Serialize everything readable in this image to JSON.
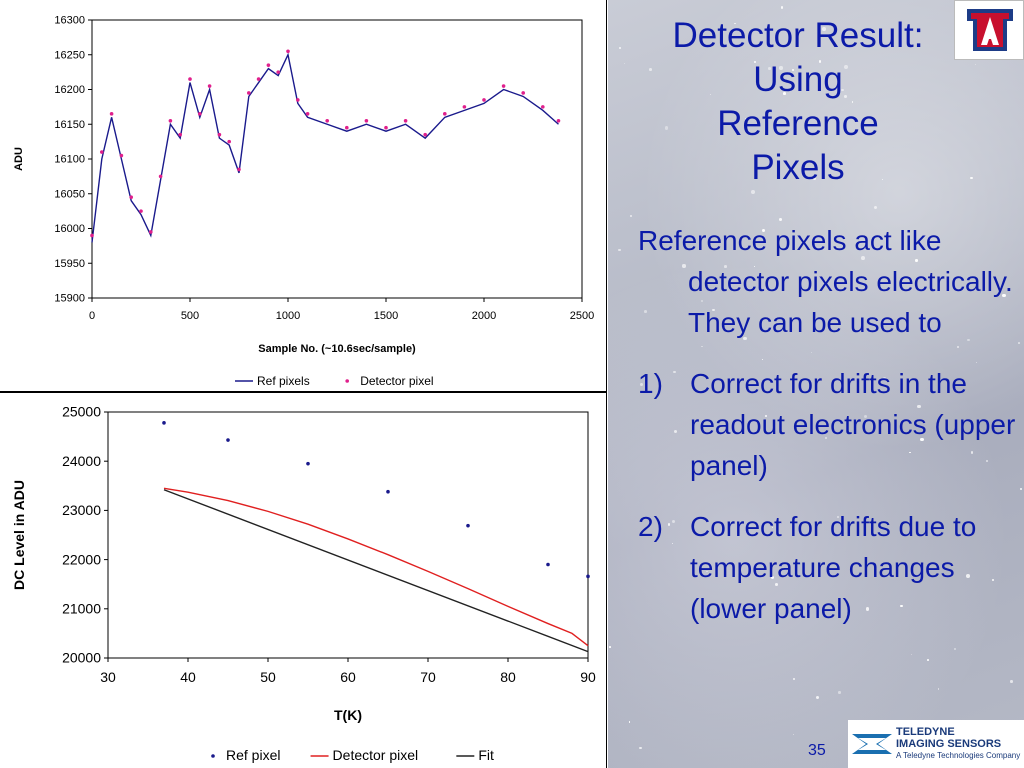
{
  "slide": {
    "title": "Detector Result: Using Reference Pixels",
    "intro": "Reference pixels act like detector pixels electrically. They can be used to",
    "items": [
      {
        "num": "1)",
        "text": "Correct for drifts in the readout electronics (upper panel)"
      },
      {
        "num": "2)",
        "text": "Correct for drifts due to temperature changes (lower panel)"
      }
    ],
    "page_number": "35",
    "logo_letter": "A",
    "teledyne": {
      "line1": "TELEDYNE",
      "line2": "IMAGING SENSORS",
      "line3": "A Teledyne Technologies Company"
    }
  },
  "chart_data": [
    {
      "type": "line",
      "xlabel": "Sample No. (~10.6sec/sample)",
      "ylabel": "ADU",
      "xlim": [
        0,
        2500
      ],
      "ylim": [
        15900,
        16300
      ],
      "xticks": [
        0,
        500,
        1000,
        1500,
        2000,
        2500
      ],
      "yticks": [
        15900,
        15950,
        16000,
        16050,
        16100,
        16150,
        16200,
        16250,
        16300
      ],
      "legend": "bottom",
      "grid": false,
      "series": [
        {
          "name": "Ref pixels",
          "style": "line",
          "color": "#1a1a8c",
          "x": [
            0,
            50,
            100,
            150,
            200,
            250,
            300,
            350,
            400,
            450,
            500,
            550,
            600,
            650,
            700,
            750,
            800,
            850,
            900,
            950,
            1000,
            1050,
            1100,
            1200,
            1300,
            1400,
            1500,
            1600,
            1700,
            1800,
            1900,
            2000,
            2100,
            2200,
            2300,
            2380
          ],
          "y": [
            15980,
            16100,
            16160,
            16100,
            16040,
            16020,
            15990,
            16070,
            16150,
            16130,
            16210,
            16160,
            16200,
            16130,
            16120,
            16080,
            16190,
            16210,
            16230,
            16220,
            16250,
            16180,
            16160,
            16150,
            16140,
            16150,
            16140,
            16150,
            16130,
            16160,
            16170,
            16180,
            16200,
            16190,
            16170,
            16150
          ]
        },
        {
          "name": "Detector pixel",
          "style": "dots",
          "color": "#e0208c",
          "x": [
            0,
            50,
            100,
            150,
            200,
            250,
            300,
            350,
            400,
            450,
            500,
            550,
            600,
            650,
            700,
            750,
            800,
            850,
            900,
            950,
            1000,
            1050,
            1100,
            1200,
            1300,
            1400,
            1500,
            1600,
            1700,
            1800,
            1900,
            2000,
            2100,
            2200,
            2300,
            2380
          ],
          "y": [
            15990,
            16110,
            16165,
            16105,
            16045,
            16025,
            15995,
            16075,
            16155,
            16135,
            16215,
            16165,
            16205,
            16135,
            16125,
            16085,
            16195,
            16215,
            16235,
            16225,
            16255,
            16185,
            16165,
            16155,
            16145,
            16155,
            16145,
            16155,
            16135,
            16165,
            16175,
            16185,
            16205,
            16195,
            16175,
            16155
          ]
        }
      ]
    },
    {
      "type": "line",
      "xlabel": "T(K)",
      "ylabel": "DC Level in ADU",
      "xlim": [
        30,
        90
      ],
      "ylim": [
        20000,
        25000
      ],
      "xticks": [
        30,
        40,
        50,
        60,
        70,
        80,
        90
      ],
      "yticks": [
        20000,
        21000,
        22000,
        23000,
        24000,
        25000
      ],
      "legend": "bottom",
      "grid": false,
      "series": [
        {
          "name": "Ref pixel",
          "style": "dots",
          "color": "#1a1a8c",
          "x": [
            37,
            45,
            55,
            65,
            75,
            85,
            90
          ],
          "y": [
            24780,
            24430,
            23950,
            23380,
            22690,
            21900,
            21660
          ]
        },
        {
          "name": "Detector pixel",
          "style": "line",
          "color": "#e02020",
          "x": [
            37,
            40,
            45,
            50,
            55,
            60,
            65,
            70,
            75,
            80,
            85,
            88,
            90
          ],
          "y": [
            23450,
            23370,
            23200,
            22980,
            22720,
            22420,
            22100,
            21760,
            21410,
            21050,
            20700,
            20500,
            20250
          ]
        },
        {
          "name": "Fit",
          "style": "line",
          "color": "#222222",
          "x": [
            37,
            90
          ],
          "y": [
            23420,
            20130
          ]
        }
      ]
    }
  ]
}
